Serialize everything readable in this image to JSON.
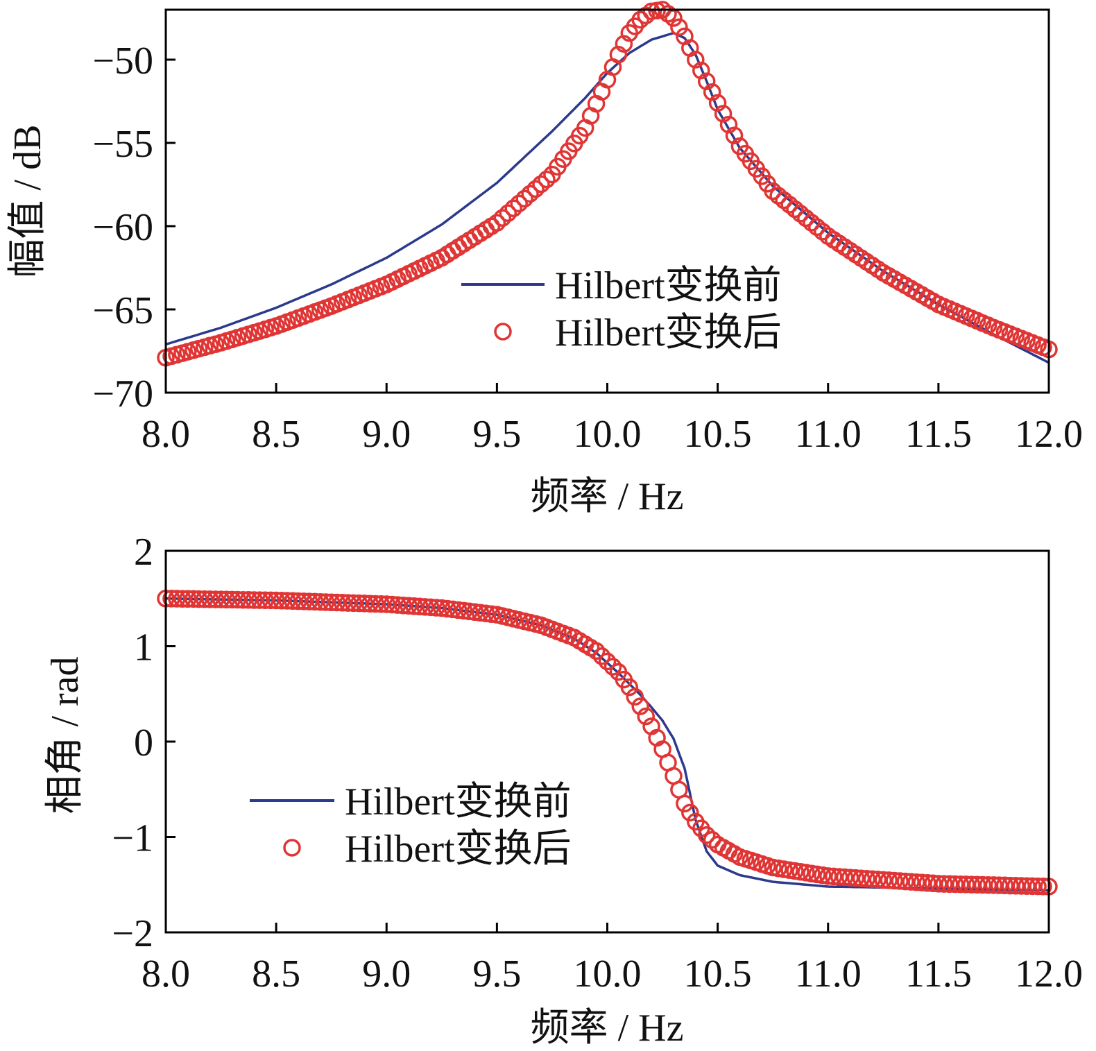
{
  "chart_data": [
    {
      "type": "line",
      "xlabel": "频率 / Hz",
      "ylabel": "幅值 / dB",
      "xlim": [
        8.0,
        12.0
      ],
      "ylim": [
        -70,
        -47
      ],
      "xticks": [
        "8.0",
        "8.5",
        "9.0",
        "9.5",
        "10.0",
        "10.5",
        "11.0",
        "11.5",
        "12.0"
      ],
      "yticks": [
        "−50",
        "−55",
        "−60",
        "−65",
        "−70"
      ],
      "legend_position": "lower-right",
      "grid": false,
      "series": [
        {
          "name": "Hilbert变换前",
          "style": "line",
          "color": "#2b3a8c",
          "x": [
            8.0,
            8.25,
            8.5,
            8.75,
            9.0,
            9.25,
            9.5,
            9.75,
            9.9,
            10.0,
            10.1,
            10.2,
            10.3,
            10.35,
            10.4,
            10.45,
            10.5,
            10.6,
            10.75,
            11.0,
            11.25,
            11.5,
            11.75,
            12.0
          ],
          "y": [
            -67.1,
            -66.1,
            -64.9,
            -63.5,
            -61.9,
            -59.9,
            -57.4,
            -54.3,
            -52.3,
            -50.8,
            -49.6,
            -48.8,
            -48.4,
            -48.7,
            -49.7,
            -51.3,
            -53.0,
            -55.3,
            -57.6,
            -60.4,
            -62.7,
            -64.7,
            -66.5,
            -68.2
          ]
        },
        {
          "name": "Hilbert变换后",
          "style": "markers",
          "color": "#e03535",
          "x": [
            8.0,
            8.25,
            8.5,
            8.75,
            9.0,
            9.25,
            9.5,
            9.75,
            9.9,
            10.0,
            10.05,
            10.1,
            10.15,
            10.2,
            10.25,
            10.3,
            10.35,
            10.4,
            10.5,
            10.6,
            10.75,
            11.0,
            11.25,
            11.5,
            11.75,
            12.0
          ],
          "y": [
            -67.9,
            -67.0,
            -66.0,
            -64.8,
            -63.5,
            -61.9,
            -59.8,
            -56.9,
            -54.1,
            -51.2,
            -49.7,
            -48.4,
            -47.6,
            -47.1,
            -47.0,
            -47.5,
            -48.6,
            -50.0,
            -52.6,
            -55.2,
            -57.9,
            -60.6,
            -62.8,
            -64.7,
            -66.1,
            -67.4
          ]
        }
      ]
    },
    {
      "type": "line",
      "xlabel": "频率 / Hz",
      "ylabel": "相角 / rad",
      "xlim": [
        8.0,
        12.0
      ],
      "ylim": [
        -2,
        2
      ],
      "xticks": [
        "8.0",
        "8.5",
        "9.0",
        "9.5",
        "10.0",
        "10.5",
        "11.0",
        "11.5",
        "12.0"
      ],
      "yticks": [
        "2",
        "1",
        "0",
        "−1",
        "−2"
      ],
      "legend_position": "lower-left",
      "grid": false,
      "series": [
        {
          "name": "Hilbert变换前",
          "style": "line",
          "color": "#2b3a8c",
          "x": [
            8.0,
            8.5,
            9.0,
            9.25,
            9.5,
            9.7,
            9.85,
            9.95,
            10.05,
            10.15,
            10.2,
            10.25,
            10.3,
            10.35,
            10.4,
            10.45,
            10.5,
            10.6,
            10.75,
            11.0,
            11.5,
            12.0
          ],
          "y": [
            1.5,
            1.48,
            1.44,
            1.4,
            1.33,
            1.22,
            1.08,
            0.93,
            0.72,
            0.49,
            0.36,
            0.22,
            0.03,
            -0.28,
            -0.82,
            -1.15,
            -1.3,
            -1.4,
            -1.47,
            -1.52,
            -1.54,
            -1.56
          ]
        },
        {
          "name": "Hilbert变换后",
          "style": "markers",
          "color": "#e03535",
          "x": [
            8.0,
            8.5,
            9.0,
            9.25,
            9.5,
            9.7,
            9.85,
            9.95,
            10.05,
            10.1,
            10.15,
            10.2,
            10.25,
            10.3,
            10.35,
            10.4,
            10.45,
            10.5,
            10.6,
            10.75,
            11.0,
            11.5,
            12.0
          ],
          "y": [
            1.5,
            1.48,
            1.44,
            1.4,
            1.33,
            1.22,
            1.09,
            0.95,
            0.73,
            0.57,
            0.37,
            0.16,
            -0.08,
            -0.36,
            -0.65,
            -0.84,
            -0.98,
            -1.08,
            -1.21,
            -1.32,
            -1.41,
            -1.49,
            -1.52
          ]
        }
      ]
    }
  ]
}
